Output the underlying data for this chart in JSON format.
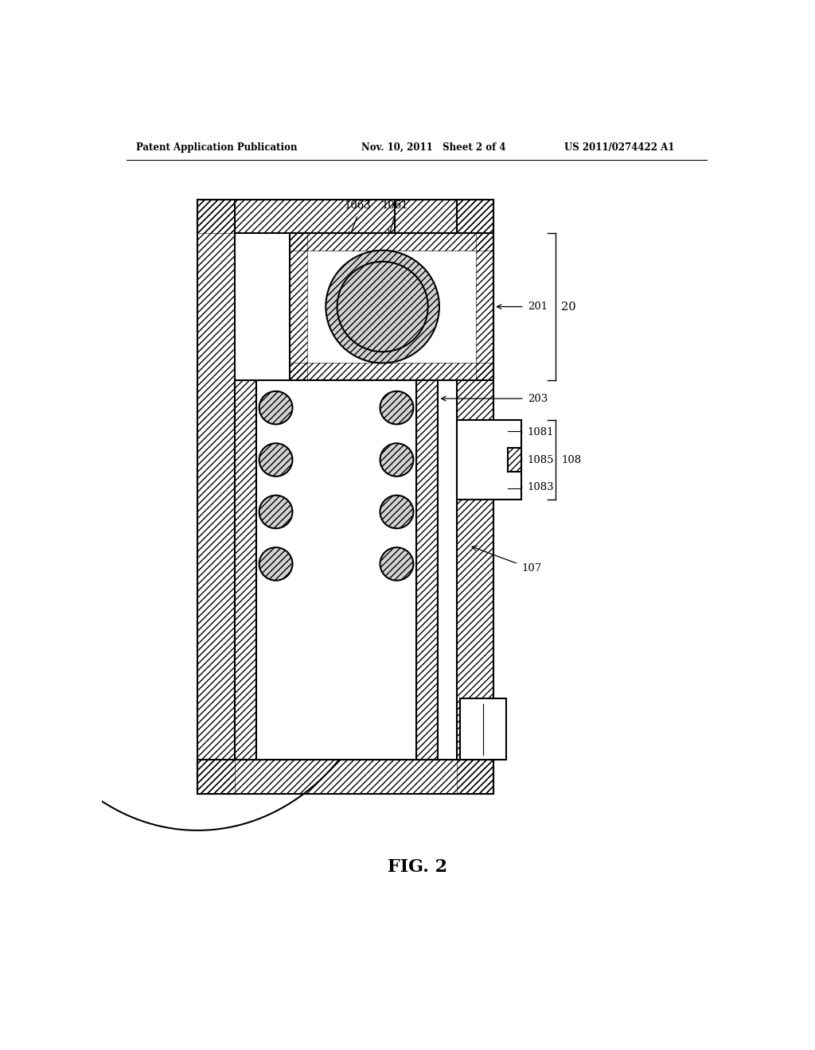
{
  "title_left": "Patent Application Publication",
  "title_mid": "Nov. 10, 2011   Sheet 2 of 4",
  "title_right": "US 2011/0274422 A1",
  "fig_label": "FIG. 2",
  "bg_color": "#ffffff",
  "line_color": "#000000"
}
